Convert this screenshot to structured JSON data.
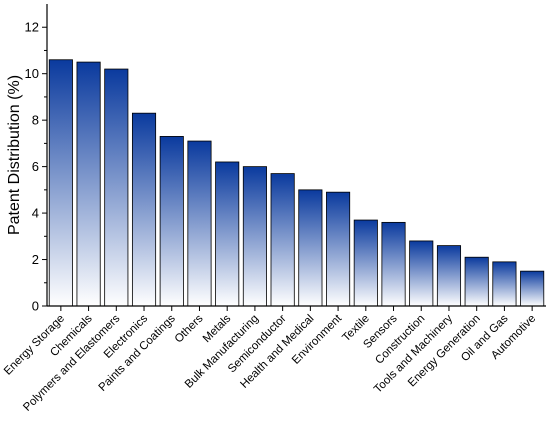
{
  "chart_data": {
    "type": "bar",
    "title": "",
    "xlabel": "",
    "ylabel": "Patent Distribution (%)",
    "ylim": [
      0,
      13
    ],
    "yticks": [
      0,
      2,
      4,
      6,
      8,
      10,
      12
    ],
    "grid": false,
    "categories": [
      "Energy Storage",
      "Chemicals",
      "Polymers and Elastomers",
      "Electronics",
      "Paints and Coatings",
      "Others",
      "Metals",
      "Bulk Manufacturing",
      "Semiconductor",
      "Health and Medical",
      "Environment",
      "Textile",
      "Sensors",
      "Construction",
      "Tools and Machinery",
      "Energy Generation",
      "Oil and Gas",
      "Automotive"
    ],
    "values": [
      10.6,
      10.5,
      10.2,
      8.3,
      7.3,
      7.1,
      6.2,
      6.0,
      5.7,
      5.0,
      4.9,
      3.7,
      3.6,
      2.8,
      2.6,
      2.1,
      1.9,
      1.5
    ],
    "colors": {
      "bar_top": "#0a3a9e",
      "bar_bottom": "#ffffff",
      "bar_stroke": "#000000"
    }
  }
}
